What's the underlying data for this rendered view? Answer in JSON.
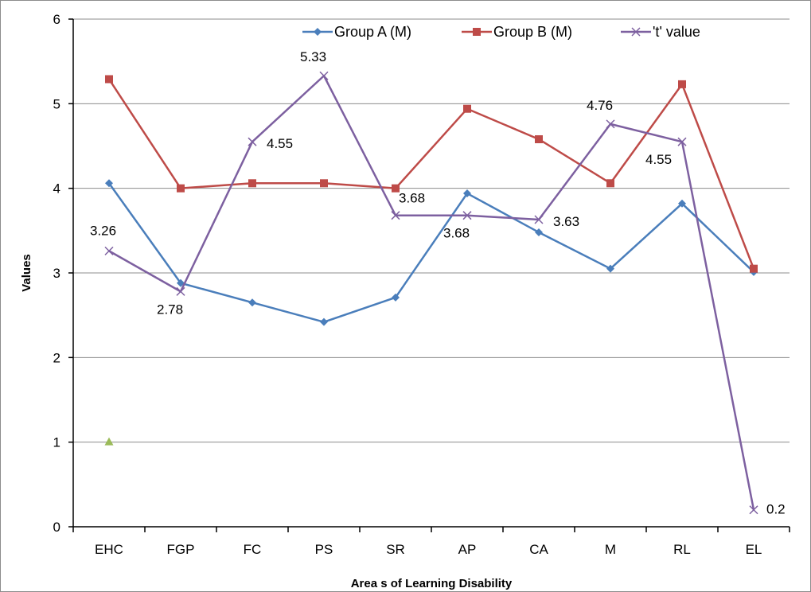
{
  "chart_data": {
    "type": "line",
    "categories": [
      "EHC",
      "FGP",
      "FC",
      "PS",
      "SR",
      "AP",
      "CA",
      "M",
      "RL",
      "EL"
    ],
    "series": [
      {
        "name": "Group A (M)",
        "color": "#4a7ebb",
        "marker": "diamond",
        "values": [
          4.06,
          2.88,
          2.65,
          2.42,
          2.71,
          3.94,
          3.48,
          3.05,
          3.82,
          3.01
        ]
      },
      {
        "name": "Group B (M)",
        "color": "#be4b48",
        "marker": "square",
        "values": [
          5.29,
          4.0,
          4.06,
          4.06,
          4.0,
          4.94,
          4.58,
          4.06,
          5.23,
          3.05
        ]
      },
      {
        "name": "'t' value",
        "color": "#7d60a0",
        "marker": "x",
        "values": [
          3.26,
          2.78,
          4.55,
          5.33,
          3.68,
          3.68,
          3.63,
          4.76,
          4.55,
          0.2
        ],
        "labels": [
          "3.26",
          "2.78",
          "4.55",
          "5.33",
          "3.68",
          "3.68",
          "3.63",
          "4.76",
          "4.55",
          "0.2"
        ]
      }
    ],
    "extra_points": [
      {
        "category": "EHC",
        "value": 1.0,
        "color": "#9bbb59",
        "marker": "triangle"
      }
    ],
    "xlabel": "Area s of Learning Disability",
    "ylabel": "Values",
    "ylim": [
      0,
      6
    ],
    "yticks": [
      "0",
      "1",
      "2",
      "3",
      "4",
      "5",
      "6"
    ],
    "grid": true,
    "legend": "top-right"
  }
}
